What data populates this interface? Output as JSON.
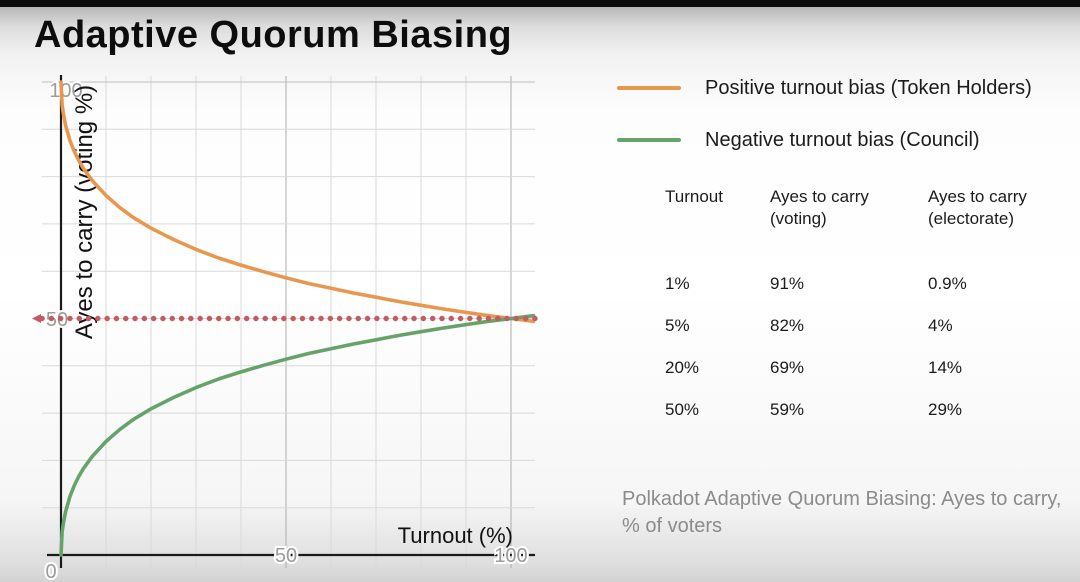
{
  "page": {
    "title": "Adaptive Quorum Biasing"
  },
  "legend": {
    "items": [
      {
        "name": "positive-turnout-bias",
        "label": "Positive turnout bias (Token Holders)",
        "color": "#E8974F"
      },
      {
        "name": "negative-turnout-bias",
        "label": "Negative turnout bias (Council)",
        "color": "#66A36A"
      }
    ]
  },
  "table": {
    "headers": [
      "Turnout",
      "Ayes to carry\n(voting)",
      "Ayes to carry\n(electorate)"
    ],
    "rows": [
      [
        "1%",
        "91%",
        "0.9%"
      ],
      [
        "5%",
        "82%",
        "4%"
      ],
      [
        "20%",
        "69%",
        "14%"
      ],
      [
        "50%",
        "59%",
        "29%"
      ]
    ]
  },
  "caption": "Polkadot Adaptive Quorum Biasing: Ayes to carry, % of voters",
  "chart_data": {
    "type": "line",
    "title": "",
    "xlabel": "Turnout (%)",
    "ylabel": "Ayes to carry (voting %)",
    "xlim": [
      0,
      105
    ],
    "ylim": [
      0,
      100
    ],
    "x_ticks": [
      0,
      50,
      100
    ],
    "y_ticks": [
      0,
      50,
      100
    ],
    "grid": true,
    "grid_color": "#d9d9d9",
    "grid_major_color": "#acacac",
    "axis_color": "#1a1a1a",
    "tick_label_color": "#9b9b9b",
    "reference_line": {
      "y": 50,
      "style": "dotted",
      "color": "#C45A62"
    },
    "series": [
      {
        "name": "Positive turnout bias (Token Holders)",
        "color": "#E8974F",
        "x": [
          0,
          0.25,
          0.5,
          1,
          2,
          3,
          4,
          5,
          7,
          10,
          13,
          16,
          20,
          25,
          30,
          35,
          40,
          45,
          50,
          55,
          60,
          65,
          70,
          75,
          80,
          85,
          90,
          95,
          100,
          105
        ],
        "y": [
          100,
          95.2,
          93.4,
          90.9,
          87.6,
          85.2,
          83.3,
          81.7,
          79.1,
          76.0,
          73.5,
          71.4,
          69.1,
          66.7,
          64.6,
          62.8,
          61.3,
          59.9,
          58.6,
          57.4,
          56.4,
          55.4,
          54.5,
          53.6,
          52.8,
          52.0,
          51.3,
          50.6,
          50.0,
          49.4
        ]
      },
      {
        "name": "Negative turnout bias (Council)",
        "color": "#66A36A",
        "x": [
          0,
          0.25,
          0.5,
          1,
          2,
          3,
          4,
          5,
          7,
          10,
          13,
          16,
          20,
          25,
          30,
          35,
          40,
          45,
          50,
          55,
          60,
          65,
          70,
          75,
          80,
          85,
          90,
          95,
          100,
          105
        ],
        "y": [
          0,
          4.8,
          6.6,
          9.1,
          12.4,
          14.8,
          16.7,
          18.3,
          20.9,
          24.0,
          26.5,
          28.6,
          30.9,
          33.3,
          35.4,
          37.2,
          38.7,
          40.1,
          41.4,
          42.6,
          43.6,
          44.6,
          45.5,
          46.4,
          47.2,
          48.0,
          48.7,
          49.4,
          50.0,
          50.6
        ]
      }
    ]
  }
}
